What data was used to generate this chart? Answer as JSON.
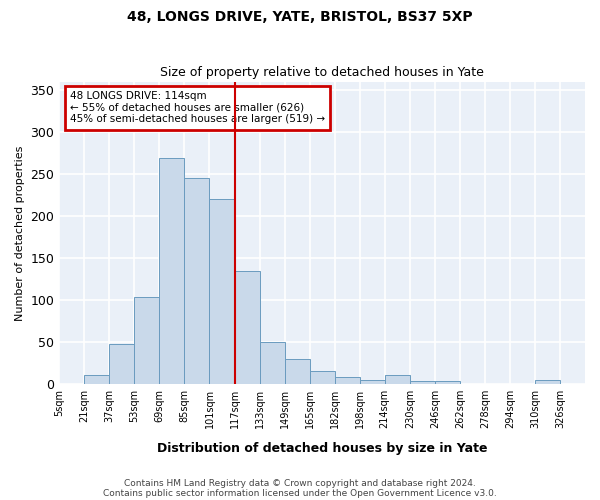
{
  "title1": "48, LONGS DRIVE, YATE, BRISTOL, BS37 5XP",
  "title2": "Size of property relative to detached houses in Yate",
  "xlabel": "Distribution of detached houses by size in Yate",
  "ylabel": "Number of detached properties",
  "bin_labels": [
    "5sqm",
    "21sqm",
    "37sqm",
    "53sqm",
    "69sqm",
    "85sqm",
    "101sqm",
    "117sqm",
    "133sqm",
    "149sqm",
    "165sqm",
    "182sqm",
    "198sqm",
    "214sqm",
    "230sqm",
    "246sqm",
    "262sqm",
    "278sqm",
    "294sqm",
    "310sqm",
    "326sqm"
  ],
  "bar_heights": [
    0,
    10,
    47,
    104,
    270,
    245,
    220,
    135,
    50,
    30,
    15,
    8,
    5,
    10,
    4,
    4,
    0,
    0,
    0,
    5,
    0
  ],
  "bar_color": "#c9d9ea",
  "bar_edge_color": "#6a9bbf",
  "vline_x": 117,
  "vline_color": "#cc0000",
  "ylim": [
    0,
    360
  ],
  "yticks": [
    0,
    50,
    100,
    150,
    200,
    250,
    300,
    350
  ],
  "annotation_title": "48 LONGS DRIVE: 114sqm",
  "annotation_line1": "← 55% of detached houses are smaller (626)",
  "annotation_line2": "45% of semi-detached houses are larger (519) →",
  "annotation_box_color": "#cc0000",
  "footnote1": "Contains HM Land Registry data © Crown copyright and database right 2024.",
  "footnote2": "Contains public sector information licensed under the Open Government Licence v3.0.",
  "background_color": "#eaf0f8",
  "grid_color": "#ffffff"
}
